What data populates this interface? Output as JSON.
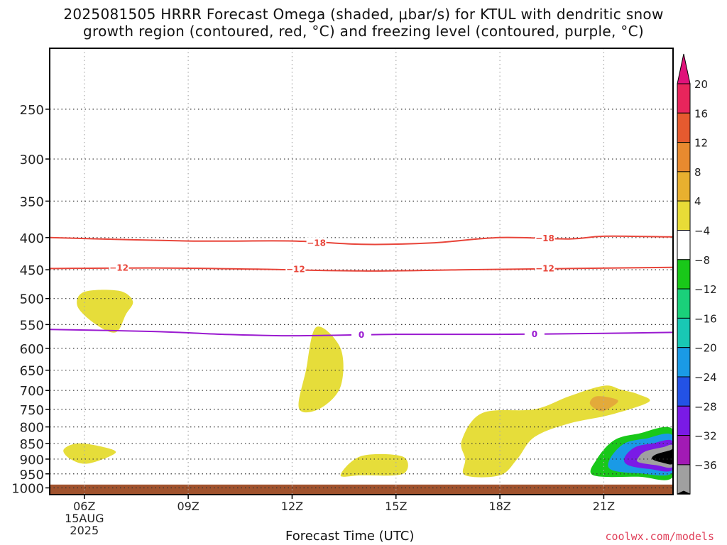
{
  "title_line1": "2025081505 HRRR Forecast Omega (shaded, μbar/s) for KTUL with dendritic snow",
  "title_line2": "growth region (contoured, red, °C) and freezing level (contoured, purple, °C)",
  "credit": "coolwx.com/models",
  "chart_data": {
    "type": "contour",
    "xlabel": "Forecast Time (UTC)",
    "ylabel": "",
    "x_ticks": [
      "06Z",
      "09Z",
      "12Z",
      "15Z",
      "18Z",
      "21Z"
    ],
    "x_tick_sub": [
      "15AUG",
      "2025"
    ],
    "x_range_hours": [
      5,
      23
    ],
    "y_scale": "log-pressure",
    "y_ticks": [
      250,
      300,
      350,
      400,
      450,
      500,
      550,
      600,
      650,
      700,
      750,
      800,
      850,
      900,
      950,
      1000
    ],
    "y_range_hPa": [
      200,
      1025
    ],
    "grid": true,
    "colorbar": {
      "labels": [
        "20",
        "16",
        "12",
        "8",
        "4",
        "−4",
        "−8",
        "−12",
        "−16",
        "−20",
        "−24",
        "−28",
        "−32",
        "−36"
      ],
      "colors": [
        "#e8255c",
        "#e65a2f",
        "#e88a2f",
        "#e8b02f",
        "#e8dc37",
        "#ffffff",
        "#19c819",
        "#1ad07a",
        "#19c8b4",
        "#1a9ae6",
        "#2352e6",
        "#7a1ae6",
        "#a21ab4",
        "#a0a0a0",
        "#000000"
      ],
      "top_cap_color": "#e0127a",
      "bottom_cap_color": "#000000"
    },
    "contours": [
      {
        "name": "dendritic snow growth",
        "color": "#e8453a",
        "value": -18,
        "points": [
          [
            5,
            400
          ],
          [
            9,
            405
          ],
          [
            12,
            405
          ],
          [
            14,
            410
          ],
          [
            16,
            408
          ],
          [
            18,
            400
          ],
          [
            20,
            402
          ],
          [
            21,
            398
          ],
          [
            23,
            399
          ]
        ],
        "labels": [
          {
            "x": 12.7,
            "p": 408,
            "text": "−18"
          },
          {
            "x": 19.3,
            "p": 401,
            "text": "−18"
          }
        ]
      },
      {
        "name": "dendritic snow growth",
        "color": "#e8453a",
        "value": -12,
        "points": [
          [
            5,
            448
          ],
          [
            8,
            447
          ],
          [
            11,
            449
          ],
          [
            14,
            452
          ],
          [
            17,
            450
          ],
          [
            20,
            448
          ],
          [
            23,
            446
          ]
        ],
        "labels": [
          {
            "x": 7.0,
            "p": 447,
            "text": "−12"
          },
          {
            "x": 12.1,
            "p": 449,
            "text": "−12"
          },
          {
            "x": 19.3,
            "p": 448,
            "text": "−12"
          }
        ]
      },
      {
        "name": "freezing level",
        "color": "#9a1ad0",
        "value": 0,
        "points": [
          [
            5,
            560
          ],
          [
            8,
            564
          ],
          [
            10,
            570
          ],
          [
            12,
            573
          ],
          [
            15,
            570
          ],
          [
            18,
            570
          ],
          [
            21,
            568
          ],
          [
            23,
            566
          ]
        ],
        "labels": [
          {
            "x": 14.0,
            "p": 571,
            "text": "0"
          },
          {
            "x": 19.0,
            "p": 570,
            "text": "0"
          }
        ]
      }
    ],
    "shaded_regions": [
      {
        "level": "4 to 8",
        "color": "#e6dd3a",
        "points": [
          [
            6.0,
            488
          ],
          [
            7.0,
            486
          ],
          [
            7.4,
            505
          ],
          [
            7.2,
            530
          ],
          [
            6.9,
            566
          ],
          [
            6.3,
            548
          ],
          [
            5.8,
            514
          ]
        ]
      },
      {
        "level": "4 to 8",
        "color": "#e6dd3a",
        "points": [
          [
            12.7,
            555
          ],
          [
            13.4,
            600
          ],
          [
            13.4,
            690
          ],
          [
            12.8,
            748
          ],
          [
            12.2,
            748
          ],
          [
            12.4,
            650
          ]
        ]
      },
      {
        "level": "4 to 8",
        "color": "#e6dd3a",
        "points": [
          [
            5.8,
            850
          ],
          [
            6.5,
            860
          ],
          [
            6.9,
            880
          ],
          [
            6.1,
            915
          ],
          [
            5.6,
            900
          ],
          [
            5.4,
            870
          ]
        ]
      },
      {
        "level": "4 to 8",
        "color": "#e6dd3a",
        "points": [
          [
            14.0,
            890
          ],
          [
            15.2,
            892
          ],
          [
            15.2,
            950
          ],
          [
            14.0,
            955
          ],
          [
            13.4,
            955
          ]
        ]
      },
      {
        "level": "4 to 8",
        "color": "#e6dd3a",
        "points": [
          [
            17.5,
            760
          ],
          [
            19.0,
            750
          ],
          [
            20.0,
            715
          ],
          [
            21.0,
            688
          ],
          [
            21.5,
            698
          ],
          [
            22.0,
            710
          ],
          [
            22.3,
            730
          ],
          [
            21.2,
            765
          ],
          [
            20.0,
            790
          ],
          [
            19.0,
            830
          ],
          [
            18.5,
            900
          ],
          [
            18.0,
            955
          ],
          [
            17.0,
            955
          ],
          [
            17.0,
            900
          ],
          [
            16.9,
            840
          ]
        ]
      },
      {
        "level": "8 to 12",
        "color": "#e3aa3a",
        "points": [
          [
            20.8,
            715
          ],
          [
            21.4,
            725
          ],
          [
            21.2,
            745
          ],
          [
            20.9,
            755
          ],
          [
            20.6,
            735
          ]
        ]
      },
      {
        "level": "-4 to -8",
        "color": "#19c819",
        "points": [
          [
            21.3,
            840
          ],
          [
            22.0,
            820
          ],
          [
            23.0,
            808
          ],
          [
            23.0,
            960
          ],
          [
            22.0,
            960
          ],
          [
            20.7,
            955
          ],
          [
            20.8,
            900
          ]
        ]
      },
      {
        "level": "-8 to -20",
        "color": "#1a9ae6",
        "points": [
          [
            21.6,
            850
          ],
          [
            22.2,
            835
          ],
          [
            23.0,
            826
          ],
          [
            23.0,
            945
          ],
          [
            22.0,
            948
          ],
          [
            21.2,
            935
          ],
          [
            21.2,
            895
          ]
        ]
      },
      {
        "level": "-24 to -28",
        "color": "#7a1ae6",
        "points": [
          [
            21.9,
            862
          ],
          [
            22.4,
            850
          ],
          [
            23.0,
            844
          ],
          [
            23.0,
            935
          ],
          [
            22.3,
            933
          ],
          [
            21.7,
            920
          ],
          [
            21.6,
            895
          ]
        ]
      },
      {
        "level": "-32",
        "color": "#a0a0a0",
        "points": [
          [
            22.2,
            875
          ],
          [
            22.7,
            862
          ],
          [
            23.0,
            858
          ],
          [
            23.0,
            925
          ],
          [
            22.5,
            920
          ],
          [
            22.0,
            910
          ],
          [
            22.0,
            895
          ]
        ]
      },
      {
        "level": "-36",
        "color": "#000000",
        "points": [
          [
            22.5,
            885
          ],
          [
            22.9,
            872
          ],
          [
            23.0,
            870
          ],
          [
            23.0,
            915
          ],
          [
            22.7,
            912
          ],
          [
            22.4,
            900
          ]
        ]
      }
    ],
    "terrain": {
      "color": "#a0522d",
      "top_hPa": 988
    }
  }
}
